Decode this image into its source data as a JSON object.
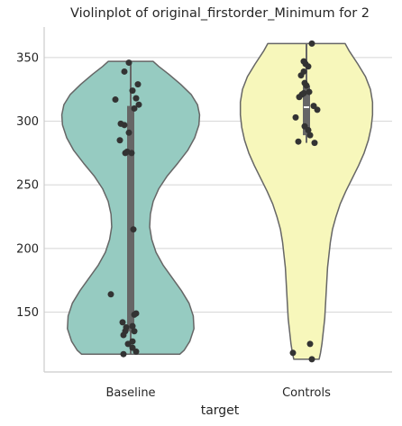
{
  "chart_data": {
    "type": "violin",
    "title": "Violinplot of original_firstorder_Minimum for 2",
    "xlabel": "target",
    "ylabel": "",
    "categories": [
      "Baseline",
      "Controls"
    ],
    "yticks": [
      150,
      200,
      250,
      300,
      350
    ],
    "ylim": [
      103,
      374
    ],
    "grid": true,
    "colors": {
      "Baseline": "#96cbc1",
      "Controls": "#f7f7bb",
      "outline": "#666666",
      "points": "#333333",
      "box": "#666666",
      "median": "#ffffff",
      "grid": "#d5d5d5",
      "spine": "#cccccc"
    },
    "series": [
      {
        "name": "Baseline",
        "min": 117,
        "q1": 135,
        "median": 275,
        "q3": 312,
        "max": 347,
        "density_profile": [
          [
            117,
            0.7
          ],
          [
            120,
            0.76
          ],
          [
            127,
            0.84
          ],
          [
            137,
            0.9
          ],
          [
            147,
            0.89
          ],
          [
            157,
            0.83
          ],
          [
            167,
            0.72
          ],
          [
            177,
            0.59
          ],
          [
            187,
            0.46
          ],
          [
            197,
            0.36
          ],
          [
            207,
            0.3
          ],
          [
            217,
            0.27
          ],
          [
            227,
            0.28
          ],
          [
            237,
            0.32
          ],
          [
            247,
            0.4
          ],
          [
            257,
            0.52
          ],
          [
            267,
            0.67
          ],
          [
            277,
            0.81
          ],
          [
            287,
            0.91
          ],
          [
            297,
            0.97
          ],
          [
            305,
            0.98
          ],
          [
            313,
            0.95
          ],
          [
            321,
            0.86
          ],
          [
            329,
            0.71
          ],
          [
            337,
            0.54
          ],
          [
            343,
            0.4
          ],
          [
            347,
            0.32
          ]
        ],
        "points": [
          [
            117,
            -0.08
          ],
          [
            119,
            0.06
          ],
          [
            122,
            0.02
          ],
          [
            125,
            -0.03
          ],
          [
            127,
            0.02
          ],
          [
            132,
            -0.08
          ],
          [
            135,
            -0.06
          ],
          [
            135,
            0.04
          ],
          [
            138,
            -0.05
          ],
          [
            139,
            0.02
          ],
          [
            142,
            -0.09
          ],
          [
            148,
            0.04
          ],
          [
            149,
            0.06
          ],
          [
            164,
            -0.22
          ],
          [
            215,
            0.03
          ],
          [
            275,
            -0.06
          ],
          [
            275,
            0.01
          ],
          [
            276,
            -0.04
          ],
          [
            285,
            -0.12
          ],
          [
            291,
            -0.02
          ],
          [
            297,
            -0.07
          ],
          [
            298,
            -0.11
          ],
          [
            310,
            0.04
          ],
          [
            313,
            0.09
          ],
          [
            317,
            -0.17
          ],
          [
            318,
            0.06
          ],
          [
            324,
            0.02
          ],
          [
            329,
            0.08
          ],
          [
            339,
            -0.07
          ],
          [
            346,
            -0.02
          ]
        ]
      },
      {
        "name": "Controls",
        "min": 283,
        "q1": 289,
        "median": 311,
        "q3": 328,
        "max": 361,
        "density_profile": [
          [
            113,
            0.18
          ],
          [
            118,
            0.2
          ],
          [
            125,
            0.22
          ],
          [
            135,
            0.24
          ],
          [
            145,
            0.26
          ],
          [
            155,
            0.27
          ],
          [
            165,
            0.28
          ],
          [
            175,
            0.29
          ],
          [
            185,
            0.3
          ],
          [
            195,
            0.32
          ],
          [
            205,
            0.34
          ],
          [
            215,
            0.37
          ],
          [
            225,
            0.42
          ],
          [
            235,
            0.48
          ],
          [
            245,
            0.56
          ],
          [
            255,
            0.65
          ],
          [
            265,
            0.74
          ],
          [
            275,
            0.82
          ],
          [
            285,
            0.88
          ],
          [
            295,
            0.92
          ],
          [
            305,
            0.94
          ],
          [
            315,
            0.94
          ],
          [
            325,
            0.91
          ],
          [
            335,
            0.84
          ],
          [
            345,
            0.73
          ],
          [
            355,
            0.61
          ],
          [
            361,
            0.55
          ]
        ],
        "points": [
          [
            113,
            0.06
          ],
          [
            118,
            -0.15
          ],
          [
            125,
            0.04
          ],
          [
            283,
            0.09
          ],
          [
            284,
            -0.09
          ],
          [
            289,
            0.04
          ],
          [
            293,
            0.02
          ],
          [
            296,
            -0.02
          ],
          [
            303,
            -0.12
          ],
          [
            309,
            0.12
          ],
          [
            312,
            0.08
          ],
          [
            319,
            -0.08
          ],
          [
            321,
            -0.05
          ],
          [
            322,
            -0.03
          ],
          [
            323,
            0.03
          ],
          [
            328,
            0.0
          ],
          [
            330,
            -0.02
          ],
          [
            336,
            -0.06
          ],
          [
            339,
            -0.03
          ],
          [
            343,
            0.02
          ],
          [
            345,
            -0.01
          ],
          [
            347,
            -0.03
          ],
          [
            361,
            0.06
          ]
        ]
      }
    ]
  }
}
